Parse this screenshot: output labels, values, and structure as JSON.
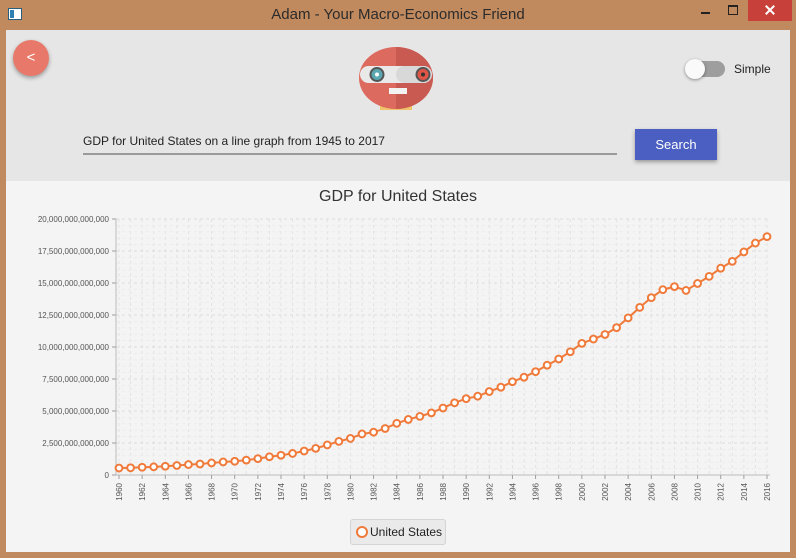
{
  "window": {
    "title": "Adam - Your Macro-Economics Friend"
  },
  "header": {
    "back_label": "<",
    "toggle_label": "Simple",
    "query_value": "GDP for United States on a line graph from 1945 to 2017",
    "search_label": "Search"
  },
  "colors": {
    "series": "#f07a3a",
    "accent": "#4a5fc1",
    "back": "#e8796a"
  },
  "chart_data": {
    "type": "line",
    "title": "GDP for United States",
    "xlabel": "",
    "ylabel": "",
    "xlim": [
      1960,
      2016
    ],
    "ylim": [
      0,
      20000000000000
    ],
    "grid": true,
    "legend": "bottom-center",
    "y_ticks": [
      "0",
      "2,500,000,000,000",
      "5,000,000,000,000",
      "7,500,000,000,000",
      "10,000,000,000,000",
      "12,500,000,000,000",
      "15,000,000,000,000",
      "17,500,000,000,000",
      "20,000,000,000,000"
    ],
    "x_ticks": [
      "1960",
      "1962",
      "1964",
      "1966",
      "1968",
      "1970",
      "1972",
      "1974",
      "1976",
      "1978",
      "1980",
      "1982",
      "1984",
      "1986",
      "1988",
      "1990",
      "1992",
      "1994",
      "1996",
      "1998",
      "2000",
      "2002",
      "2004",
      "2006",
      "2008",
      "2010",
      "2012",
      "2014",
      "2016"
    ],
    "series": [
      {
        "name": "United States",
        "x": [
          1960,
          1961,
          1962,
          1963,
          1964,
          1965,
          1966,
          1967,
          1968,
          1969,
          1970,
          1971,
          1972,
          1973,
          1974,
          1975,
          1976,
          1977,
          1978,
          1979,
          1980,
          1981,
          1982,
          1983,
          1984,
          1985,
          1986,
          1987,
          1988,
          1989,
          1990,
          1991,
          1992,
          1993,
          1994,
          1995,
          1996,
          1997,
          1998,
          1999,
          2000,
          2001,
          2002,
          2003,
          2004,
          2005,
          2006,
          2007,
          2008,
          2009,
          2010,
          2011,
          2012,
          2013,
          2014,
          2015,
          2016
        ],
        "values": [
          543300000000,
          563300000000,
          605100000000,
          638600000000,
          685800000000,
          743700000000,
          815000000000,
          861700000000,
          942500000000,
          1019900000000,
          1073300000000,
          1164900000000,
          1279100000000,
          1425400000000,
          1545200000000,
          1684900000000,
          1873400000000,
          2081800000000,
          2351600000000,
          2627300000000,
          2857300000000,
          3207000000000,
          3343800000000,
          3634000000000,
          4037600000000,
          4339000000000,
          4579600000000,
          4855200000000,
          5236400000000,
          5641600000000,
          5963100000000,
          6158100000000,
          6520300000000,
          6858600000000,
          7287200000000,
          7639700000000,
          8073100000000,
          8577600000000,
          9062800000000,
          9631200000000,
          10284800000000,
          10621800000000,
          10977500000000,
          11510700000000,
          12274900000000,
          13093700000000,
          13855900000000,
          14477600000000,
          14718600000000,
          14418700000000,
          14964400000000,
          15517900000000,
          16155300000000,
          16691500000000,
          17427600000000,
          18120700000000,
          18624500000000
        ]
      }
    ]
  }
}
